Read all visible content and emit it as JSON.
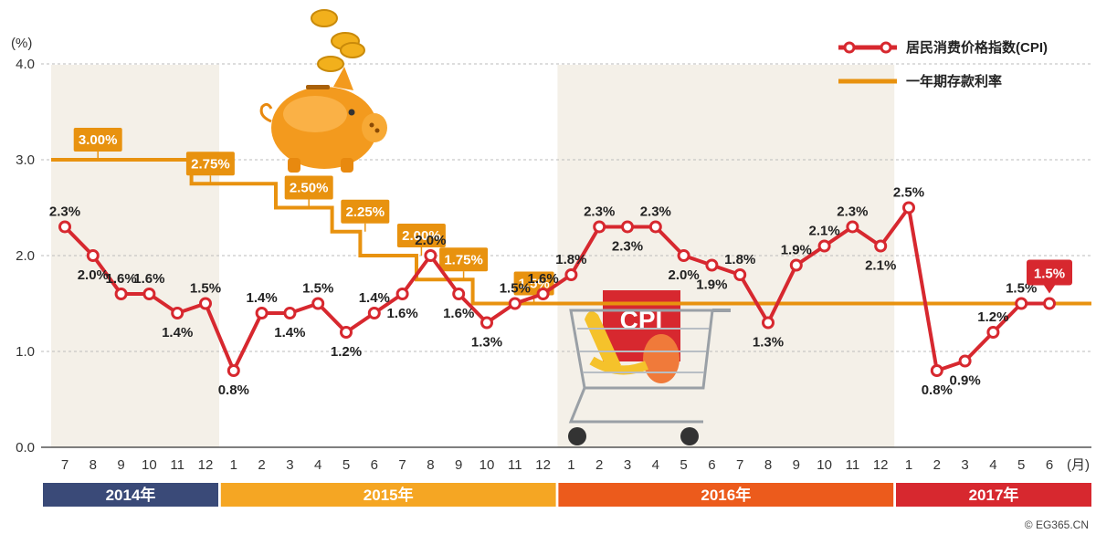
{
  "chart_data": {
    "type": "line",
    "y_unit": "(%)",
    "x_unit": "(月)",
    "ylim": [
      0,
      4
    ],
    "yticks": [
      "0.0",
      "1.0",
      "2.0",
      "3.0",
      "4.0"
    ],
    "grid": true,
    "legend_position": "top-right",
    "categories": [
      "7",
      "8",
      "9",
      "10",
      "11",
      "12",
      "1",
      "2",
      "3",
      "4",
      "5",
      "6",
      "7",
      "8",
      "9",
      "10",
      "11",
      "12",
      "1",
      "2",
      "3",
      "4",
      "5",
      "6",
      "7",
      "8",
      "9",
      "10",
      "11",
      "12",
      "1",
      "2",
      "3",
      "4",
      "5",
      "6"
    ],
    "years": [
      "2014年",
      "2015年",
      "2016年",
      "2017年"
    ],
    "series": [
      {
        "name": "居民消费价格指数(CPI)",
        "color": "#d7282f",
        "values": [
          2.3,
          2.0,
          1.6,
          1.6,
          1.4,
          1.5,
          0.8,
          1.4,
          1.4,
          1.5,
          1.2,
          1.4,
          1.6,
          2.0,
          1.6,
          1.3,
          1.5,
          1.6,
          1.8,
          2.3,
          2.3,
          2.3,
          2.0,
          1.9,
          1.8,
          1.3,
          1.9,
          2.1,
          2.3,
          2.1,
          2.5,
          0.8,
          0.9,
          1.2,
          1.5,
          1.5
        ],
        "labels": [
          "2.3%",
          "2.0%",
          "1.6%",
          "1.6%",
          "1.4%",
          "1.5%",
          "0.8%",
          "1.4%",
          "1.4%",
          "1.5%",
          "1.2%",
          "1.4%",
          "1.6%",
          "2.0%",
          "1.6%",
          "1.3%",
          "1.5%",
          "1.6%",
          "1.8%",
          "2.3%",
          "2.3%",
          "2.3%",
          "2.0%",
          "1.9%",
          "1.8%",
          "1.3%",
          "1.9%",
          "2.1%",
          "2.3%",
          "2.1%",
          "2.5%",
          "0.8%",
          "0.9%",
          "1.2%",
          "1.5%",
          "1.5%"
        ]
      },
      {
        "name": "一年期存款利率",
        "color": "#e8920f",
        "values": [
          3.0,
          3.0,
          3.0,
          3.0,
          3.0,
          2.75,
          2.75,
          2.75,
          2.5,
          2.5,
          2.25,
          2.0,
          2.0,
          1.75,
          1.75,
          1.5,
          1.5,
          1.5,
          1.5,
          1.5,
          1.5,
          1.5,
          1.5,
          1.5,
          1.5,
          1.5,
          1.5,
          1.5,
          1.5,
          1.5,
          1.5,
          1.5,
          1.5,
          1.5,
          1.5,
          1.5
        ],
        "step_labels": [
          "3.00%",
          "2.75%",
          "2.50%",
          "2.25%",
          "2.00%",
          "1.75%",
          "1.5%"
        ]
      }
    ],
    "highlight_label": "1.5%",
    "illustrations": [
      "piggy-bank-icon",
      "shopping-cart-icon"
    ],
    "cart_tag": "CPI"
  },
  "colors": {
    "cpi": "#d7282f",
    "rate": "#e8920f",
    "year_2014": "#3a4a78",
    "year_2015": "#f5a623",
    "year_2016": "#ec5b1c",
    "year_2017": "#d7282f",
    "band": "#f4f0e8"
  },
  "credit": "© EG365.CN"
}
